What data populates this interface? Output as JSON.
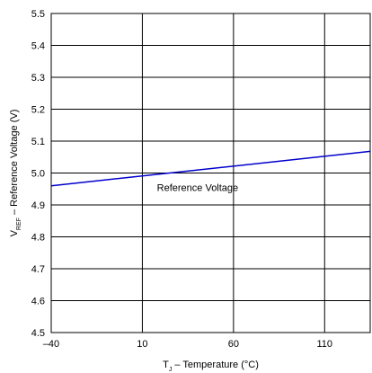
{
  "chart_data": {
    "type": "line",
    "xlabel": {
      "prefix": "T",
      "subscript": "J",
      "suffix": " – Temperature (°C)"
    },
    "ylabel": {
      "prefix": "V",
      "subscript": "REF",
      "suffix": " – Reference Voltage (V)"
    },
    "xlim": [
      -40,
      135
    ],
    "ylim": [
      4.5,
      5.5
    ],
    "x_ticks": [
      "–40",
      "10",
      "60",
      "110"
    ],
    "x_tick_values": [
      -40,
      10,
      60,
      110
    ],
    "y_ticks": [
      "5.5",
      "5.4",
      "5.3",
      "5.2",
      "5.1",
      "5.0",
      "4.9",
      "4.8",
      "4.7",
      "4.6",
      "4.5"
    ],
    "y_tick_values": [
      5.5,
      5.4,
      5.3,
      5.2,
      5.1,
      5.0,
      4.9,
      4.8,
      4.7,
      4.6,
      4.5
    ],
    "grid": true,
    "series": [
      {
        "name": "Reference Voltage",
        "color": "#0000cc",
        "x": [
          -40,
          135
        ],
        "y": [
          4.96,
          5.068
        ]
      }
    ],
    "annotations": [
      {
        "text": "Reference Voltage",
        "x": 18,
        "y": 4.955
      }
    ]
  }
}
